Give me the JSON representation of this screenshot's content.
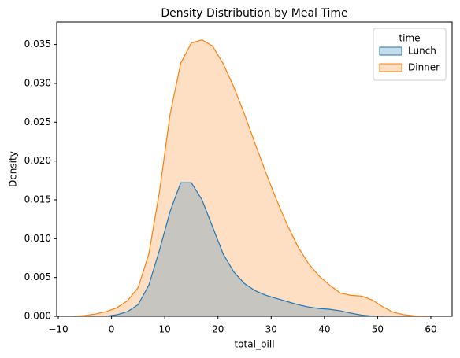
{
  "chart_data": {
    "type": "kde",
    "title": "Density Distribution by Meal Time",
    "xlabel": "total_bill",
    "ylabel": "Density",
    "x": [
      -7,
      -5,
      -3,
      -1,
      1,
      3,
      5,
      7,
      9,
      11,
      13,
      15,
      17,
      19,
      21,
      23,
      25,
      27,
      29,
      31,
      33,
      35,
      37,
      39,
      41,
      43,
      45,
      47,
      49,
      51,
      53,
      55,
      57,
      60
    ],
    "series": [
      {
        "name": "Lunch",
        "color": "#1f77b4",
        "values": [
          null,
          null,
          null,
          0,
          0.0002,
          0.0006,
          0.0015,
          0.004,
          0.0085,
          0.0135,
          0.0172,
          0.0172,
          0.015,
          0.0115,
          0.008,
          0.0057,
          0.0042,
          0.0033,
          0.0027,
          0.0023,
          0.0019,
          0.0015,
          0.0012,
          0.001,
          0.0009,
          0.0007,
          0.0004,
          0.00015,
          3e-05,
          0,
          null,
          null,
          null,
          null
        ]
      },
      {
        "name": "Dinner",
        "color": "#ff7f0e",
        "values": [
          0,
          0.0001,
          0.0003,
          0.0006,
          0.0011,
          0.002,
          0.0037,
          0.008,
          0.016,
          0.026,
          0.0326,
          0.0352,
          0.0356,
          0.0348,
          0.0325,
          0.0295,
          0.026,
          0.0222,
          0.0185,
          0.015,
          0.0118,
          0.009,
          0.0068,
          0.0052,
          0.004,
          0.003,
          0.0027,
          0.0026,
          0.0021,
          0.0012,
          0.0005,
          0.0002,
          5e-05,
          0
        ]
      }
    ],
    "legend_title": "time",
    "legend": "upper right",
    "xlim": [
      -10.3,
      64
    ],
    "ylim": [
      0,
      0.0379
    ],
    "xticks": [
      {
        "value": -10,
        "label": "−10"
      },
      0,
      10,
      20,
      30,
      40,
      50,
      60
    ],
    "yticks": [
      {
        "value": 0,
        "label": "0.000"
      },
      {
        "value": 0.005,
        "label": "0.005"
      },
      {
        "value": 0.01,
        "label": "0.010"
      },
      {
        "value": 0.015,
        "label": "0.015"
      },
      {
        "value": 0.02,
        "label": "0.020"
      },
      {
        "value": 0.025,
        "label": "0.025"
      },
      {
        "value": 0.03,
        "label": "0.030"
      },
      {
        "value": 0.035,
        "label": "0.035"
      }
    ]
  }
}
